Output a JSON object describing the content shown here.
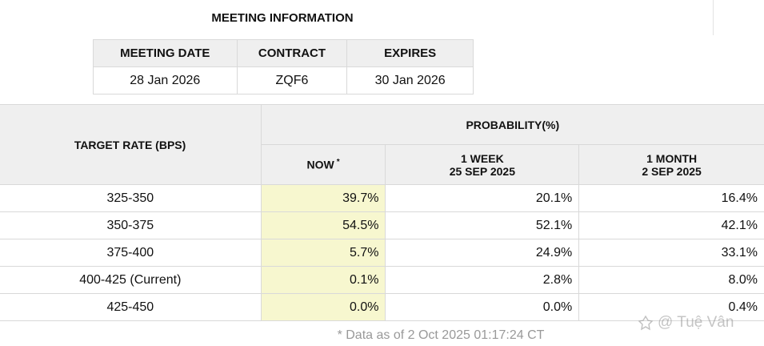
{
  "meeting": {
    "title": "MEETING INFORMATION",
    "headers": [
      "MEETING DATE",
      "CONTRACT",
      "EXPIRES"
    ],
    "values": [
      "28 Jan 2026",
      "ZQF6",
      "30 Jan 2026"
    ]
  },
  "probability": {
    "target_header": "TARGET RATE (BPS)",
    "prob_header": "PROBABILITY(%)",
    "now_label": "NOW",
    "now_mark": "*",
    "week_label": "1 WEEK",
    "week_date": "25 SEP 2025",
    "month_label": "1 MONTH",
    "month_date": "2 SEP 2025",
    "rows": [
      {
        "rate": "325-350",
        "now": "39.7%",
        "week": "20.1%",
        "month": "16.4%"
      },
      {
        "rate": "350-375",
        "now": "54.5%",
        "week": "52.1%",
        "month": "42.1%"
      },
      {
        "rate": "375-400",
        "now": "5.7%",
        "week": "24.9%",
        "month": "33.1%"
      },
      {
        "rate": "400-425 (Current)",
        "now": "0.1%",
        "week": "2.8%",
        "month": "8.0%"
      },
      {
        "rate": "425-450",
        "now": "0.0%",
        "week": "0.0%",
        "month": "0.4%"
      }
    ]
  },
  "footnote": "* Data as of 2 Oct 2025 01:17:24 CT",
  "watermark": {
    "text": "Tuệ Vân",
    "at": "@"
  },
  "colors": {
    "header_bg": "#efefef",
    "now_bg": "#f7f7cf",
    "border": "#d9d9d9"
  }
}
